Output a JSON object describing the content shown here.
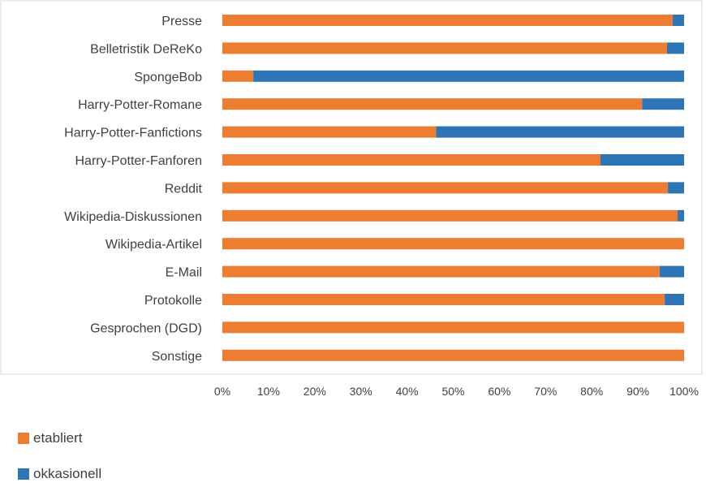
{
  "chart_data": {
    "type": "bar",
    "orientation": "horizontal",
    "stacked": "percent",
    "categories": [
      "Presse",
      "Belletristik DeReKo",
      "SpongeBob",
      "Harry-Potter-Romane",
      "Harry-Potter-Fanfictions",
      "Harry-Potter-Fanforen",
      "Reddit",
      "Wikipedia-Diskussionen",
      "Wikipedia-Artikel",
      "E-Mail",
      "Protokolle",
      "Gesprochen (DGD)",
      "Sonstige"
    ],
    "series": [
      {
        "name": "etabliert",
        "color": "#ED7D31",
        "values": [
          97.5,
          96.3,
          6.7,
          90.9,
          46.3,
          81.9,
          96.5,
          98.6,
          100,
          94.7,
          95.8,
          100,
          100
        ]
      },
      {
        "name": "okkasionell",
        "color": "#2E75B6",
        "values": [
          2.5,
          3.7,
          93.3,
          9.1,
          53.7,
          18.1,
          3.5,
          1.4,
          0,
          5.3,
          4.2,
          0,
          0
        ]
      }
    ],
    "xlim": [
      0,
      100
    ],
    "x_ticks": [
      "0%",
      "10%",
      "20%",
      "30%",
      "40%",
      "50%",
      "60%",
      "70%",
      "80%",
      "90%",
      "100%"
    ],
    "grid": false,
    "legend_position": "bottom-left"
  }
}
